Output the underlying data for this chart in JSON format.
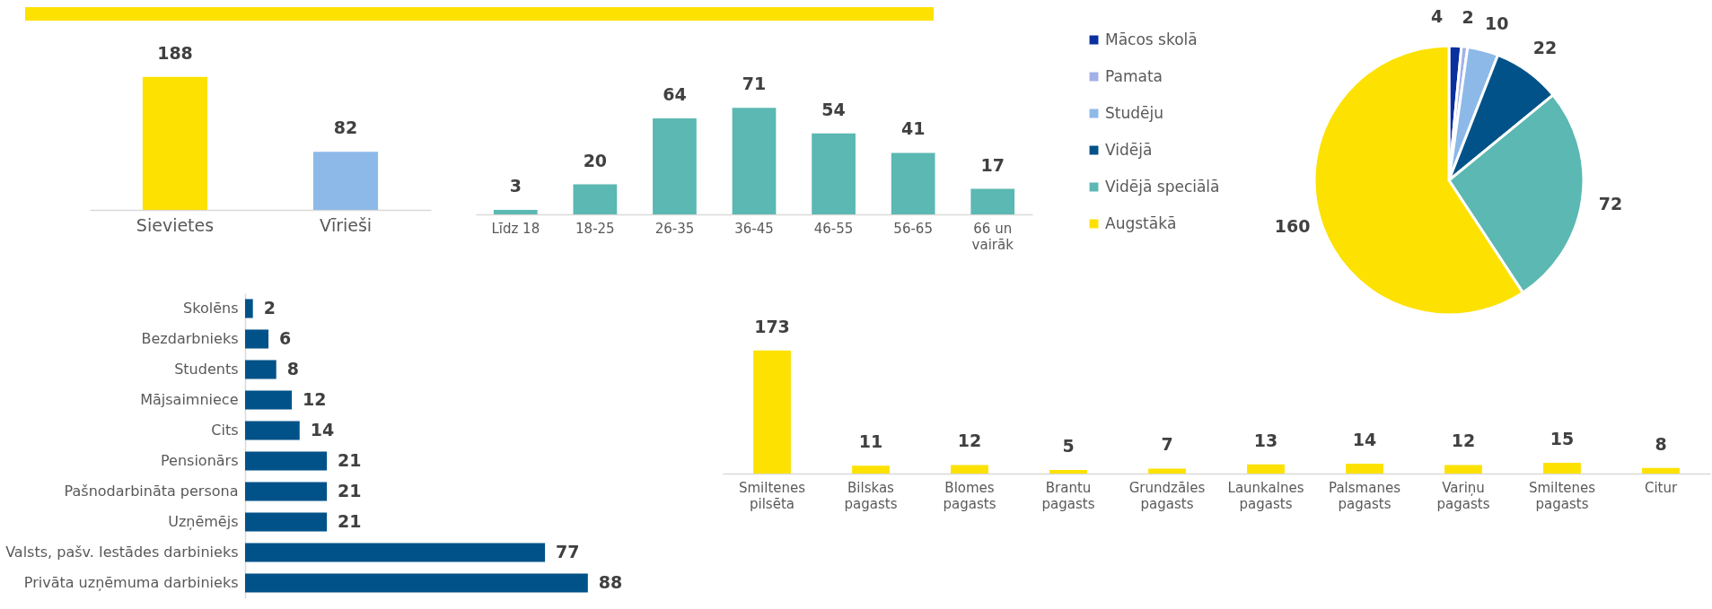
{
  "chart_data": [
    {
      "type": "bar",
      "categories": [
        "Sievietes",
        "Vīrieši"
      ],
      "values": [
        188,
        82
      ],
      "colors": [
        "#fde100",
        "#8db9e8"
      ],
      "data_labels": true,
      "tick_labels": "x"
    },
    {
      "type": "bar",
      "categories": [
        "Līdz 18",
        "18-25",
        "26-35",
        "36-45",
        "46-55",
        "56-65",
        "66 un vairāk"
      ],
      "values": [
        3,
        20,
        64,
        71,
        54,
        41,
        17
      ],
      "color": "#5bb8b2",
      "data_labels": true,
      "tick_labels": "x"
    },
    {
      "type": "pie",
      "categories": [
        "Mācos skolā",
        "Pamata",
        "Studēju",
        "Vidējā",
        "Vidējā speciālā",
        "Augstākā"
      ],
      "values": [
        4,
        2,
        10,
        22,
        72,
        160
      ],
      "colors": [
        "#0a2f9e",
        "#a3b1e8",
        "#8db9e8",
        "#005289",
        "#5bb8b2",
        "#fde100"
      ],
      "data_labels": true,
      "legend": "left"
    },
    {
      "type": "bar",
      "orientation": "horizontal",
      "categories": [
        "Skolēns",
        "Bezdarbnieks",
        "Students",
        "Mājsaimniece",
        "Cits",
        "Pensionārs",
        "Pašnodarbināta persona",
        "Uzņēmējs",
        "Valsts, pašv. Iestādes darbinieks",
        "Privāta uzņēmuma darbinieks"
      ],
      "values": [
        2,
        6,
        8,
        12,
        14,
        21,
        21,
        21,
        77,
        88
      ],
      "color": "#005289",
      "data_labels": true,
      "tick_labels": "y"
    },
    {
      "type": "bar",
      "categories": [
        "Smiltenes pilsēta",
        "Bilskas pagasts",
        "Blomes pagasts",
        "Brantu pagasts",
        "Grundzāles pagasts",
        "Launkalnes pagasts",
        "Palsmanes pagasts",
        "Variņu pagasts",
        "Smiltenes pagasts",
        "Citur"
      ],
      "values": [
        173,
        11,
        12,
        5,
        7,
        13,
        14,
        12,
        15,
        8
      ],
      "color": "#fde100",
      "data_labels": true,
      "tick_labels": "x"
    }
  ]
}
